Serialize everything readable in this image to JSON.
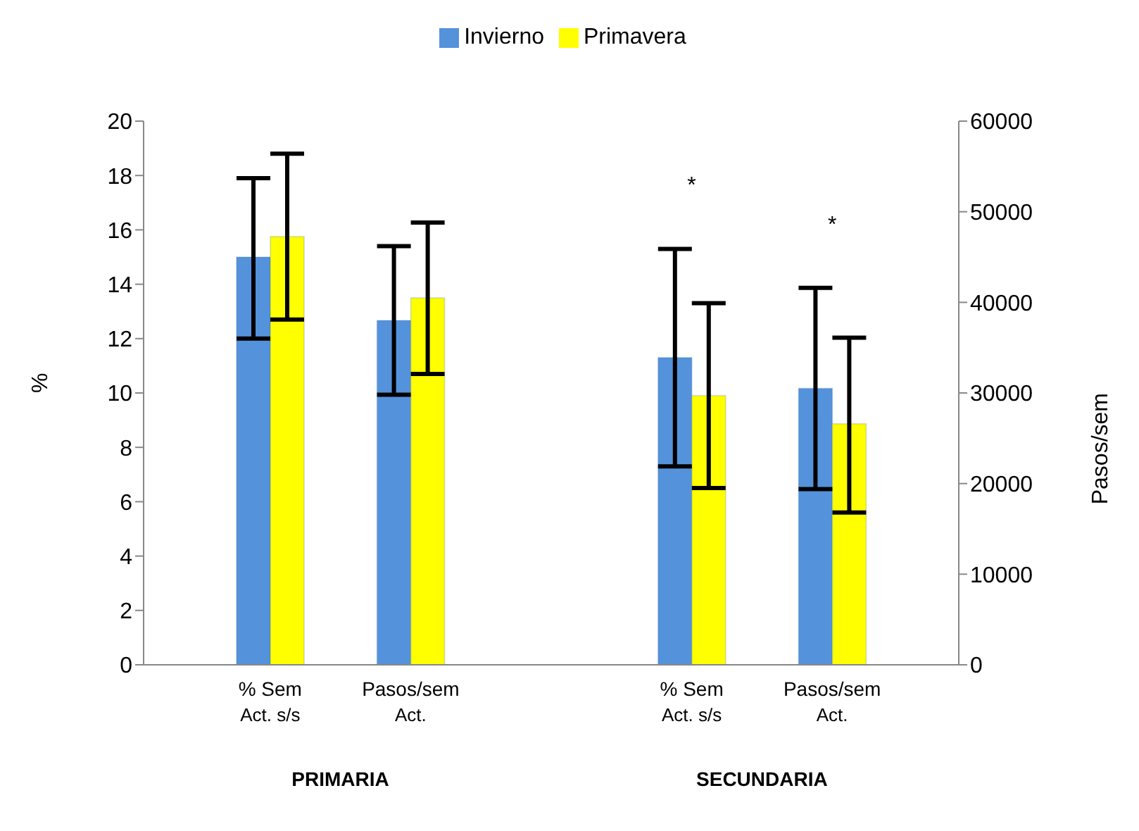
{
  "chart_data": {
    "type": "bar",
    "categories": [
      "% Sem\nAct. s/s",
      "Pasos/sem\nAct.",
      null,
      "% Sem\nAct. s/s",
      "Pasos/sem\nAct."
    ],
    "series": [
      {
        "name": "Invierno",
        "color": "#5592dc",
        "values": [
          15,
          null,
          null,
          11.3,
          null
        ],
        "errors": [
          [
            12,
            17.9
          ],
          null,
          null,
          [
            7.3,
            15.3
          ],
          null
        ]
      },
      {
        "name": "Primavera",
        "color": "#ffff00",
        "values": [
          15.75,
          null,
          null,
          9.9,
          null
        ],
        "errors": [
          [
            12.7,
            18.8
          ],
          null,
          null,
          [
            6.5,
            13.3
          ],
          null
        ]
      },
      {
        "color": "#5592dc",
        "axis": "y2",
        "values": [
          null,
          38000,
          null,
          null,
          30500
        ],
        "errors": [
          null,
          [
            29800,
            46200
          ],
          null,
          null,
          [
            19400,
            41600
          ]
        ]
      },
      {
        "color": "#ffff00",
        "axis": "y2",
        "values": [
          null,
          40500,
          null,
          null,
          26600
        ],
        "errors": [
          null,
          [
            32100,
            48800
          ],
          null,
          null,
          [
            16800,
            36100
          ]
        ]
      }
    ],
    "ylabel": "%",
    "y2label": "Pasos/sem",
    "ylim": [
      0,
      20
    ],
    "yticks": [
      0,
      2,
      4,
      6,
      8,
      10,
      12,
      14,
      16,
      18,
      20
    ],
    "y2lim": [
      0,
      60000
    ],
    "y2ticks": [
      0,
      10000,
      20000,
      30000,
      40000,
      50000,
      60000
    ],
    "annotations": [
      "PRIMARIA",
      "SECUNDARIA",
      "*",
      "*"
    ],
    "legend": "top",
    "grid": false
  }
}
